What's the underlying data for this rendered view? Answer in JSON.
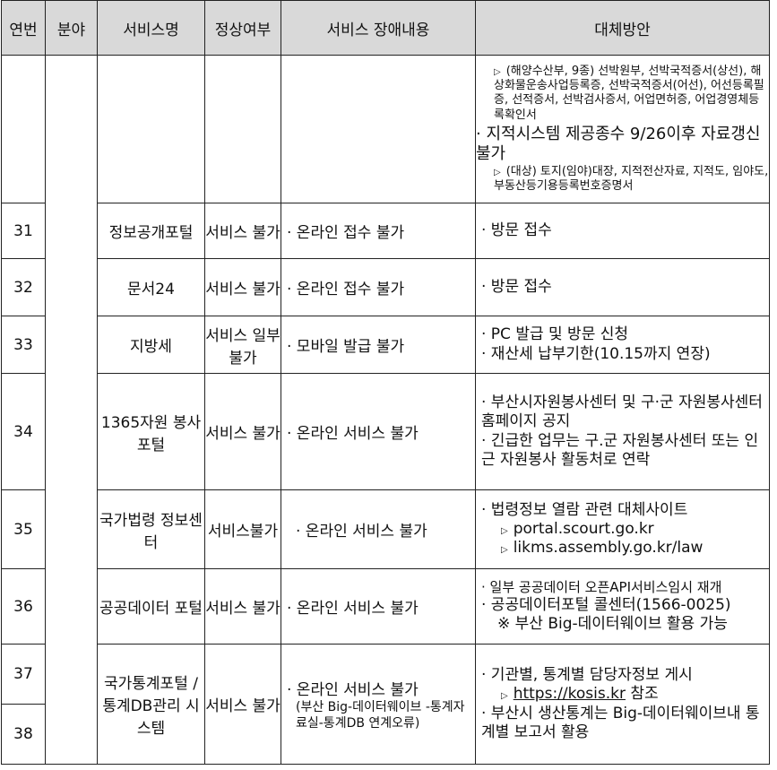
{
  "headers": [
    "연번",
    "분야",
    "서비스명",
    "정상여부",
    "서비스 장애내용",
    "대체방안"
  ],
  "cont": {
    "alt": [
      "(해양수산부, 9종) 선박원부, 선박국적증서(상선), 해상화물운송사업등록증, 선박국적증서(어선), 어선등록필증, 선적증서, 선박검사증서, 어업면허증, 어업경영체등록확인서",
      "지적시스템 제공종수 9/26이후 자료갱신 불가",
      "(대상) 토지(임야)대장, 지적전산자료, 지적도, 임야도, 부동산등기용등록번호증명서"
    ]
  },
  "rows": [
    {
      "no": "31",
      "name": "정보공개포털",
      "status": "서비스 불가",
      "issue": "· 온라인 접수 불가",
      "alt": [
        "· 방문 접수"
      ]
    },
    {
      "no": "32",
      "name": "문서24",
      "status": "서비스 불가",
      "issue": "· 온라인 접수 불가",
      "alt": [
        "· 방문 접수"
      ]
    },
    {
      "no": "33",
      "name": "지방세",
      "status": "서비스 일부 불가",
      "issue": "· 모바일 발급 불가",
      "alt": [
        "· PC 발급 및 방문 신청",
        "· 재산세 납부기한(10.15까지 연장)"
      ]
    },
    {
      "no": "34",
      "name": "1365자원 봉사포털",
      "status": "서비스 불가",
      "issue": "· 온라인 서비스 불가",
      "alt": [
        "· 부산시자원봉사센터 및 구·군 자원봉사센터 홈페이지 공지",
        "· 긴급한 업무는 구.군 자원봉사센터 또는 인근 자원봉사 활동처로 연락"
      ]
    },
    {
      "no": "35",
      "name": "국가법령 정보센터",
      "status": "서비스불가",
      "issue": "· 온라인 서비스 불가",
      "alt": [
        "· 법령정보 열람 관련 대체사이트",
        "portal.scourt.go.kr",
        "likms.assembly.go.kr/law"
      ]
    },
    {
      "no": "36",
      "name": "공공데이터 포털",
      "status": "서비스 불가",
      "issue": "· 온라인 서비스 불가",
      "alt": [
        "· 일부 공공데이터 오픈API서비스임시 재개",
        "· 공공데이터포털 콜센터(1566-0025)",
        "※ 부산 Big-데이터웨이브 활용 가능"
      ]
    },
    {
      "no": "37",
      "no2": "38",
      "name": "국가통계포털 /통계DB관리 시스템",
      "status": "서비스 불가",
      "issue": "· 온라인 서비스 불가",
      "issue_note": "(부산 Big-데이터웨이브 -통계자료실-통계DB 연계오류)",
      "alt": [
        "· 기관별, 통계별 담당자정보 게시",
        "https://kosis.kr",
        "참조",
        "· 부산시 생산통계는 Big-데이터웨이브내 통계별 보고서 활용"
      ]
    }
  ]
}
